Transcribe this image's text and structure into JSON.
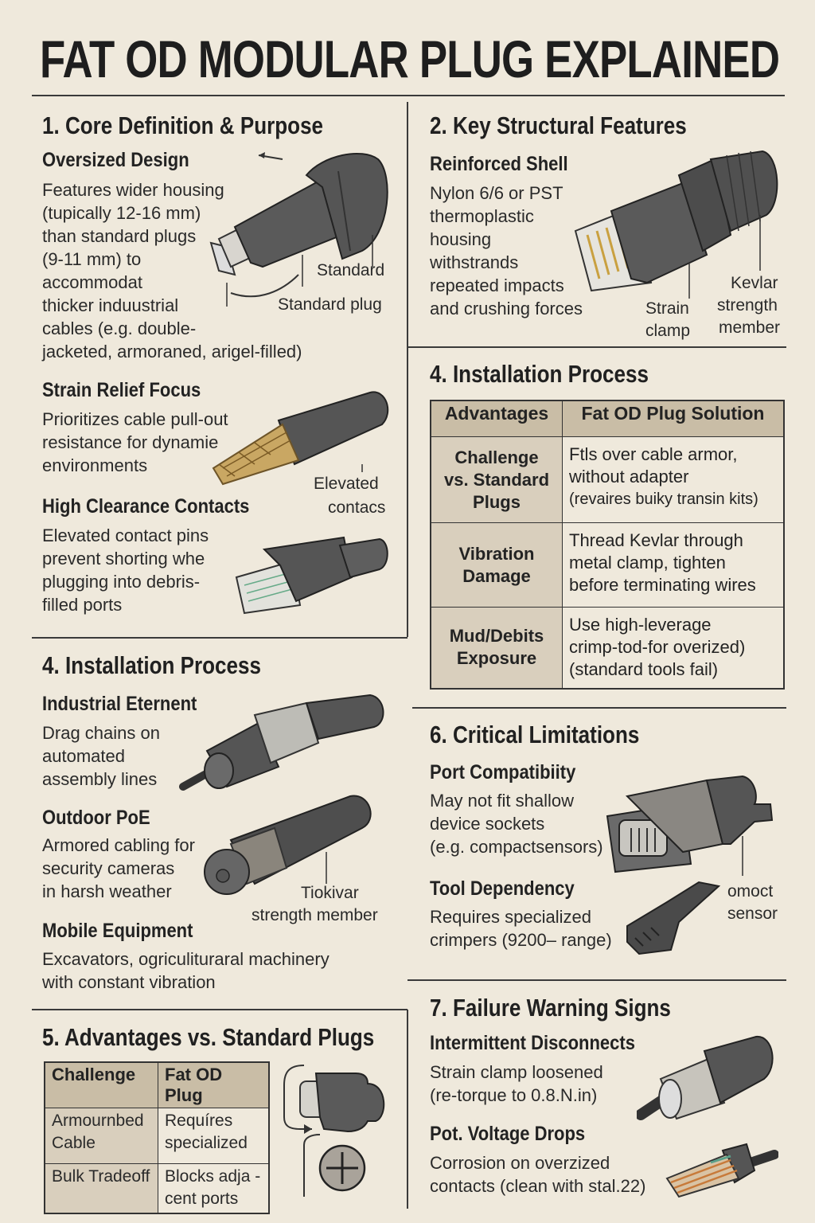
{
  "title": "FAT OD MODULAR PLUG EXPLAINED",
  "s1": {
    "heading": "1. Core Definition & Purpose",
    "items": [
      {
        "title": "Oversized Design",
        "lines": [
          "Features wider housing",
          "(tupically 12-16 mm)",
          "than standard plugs",
          "(9-11 mm) to",
          "accommodat",
          "thicker induustrial",
          "cables (e.g. double-",
          "jacketed, armoraned, arigel-filled)"
        ]
      },
      {
        "title": "Strain Relief Focus",
        "lines": [
          "Prioritizes cable pull-out",
          "resistance for dynamie",
          "environments"
        ]
      },
      {
        "title": "High  Clearance Contacts",
        "lines": [
          "Elevated contact pins",
          "prevent shorting whe",
          "plugging into debris-",
          "filled ports"
        ]
      }
    ],
    "labels": {
      "standard": "Standard",
      "standard_plug": "Standard plug",
      "elevated": "Elevated",
      "contacs": "contacs"
    }
  },
  "s2": {
    "heading": "2. Key Structural Features",
    "item": {
      "title": "Reinforced Shell",
      "lines": [
        "Nylon 6/6 or PST",
        "thermoplastic",
        "housing",
        "withstrands",
        "repeated impacts",
        "and crushing forces"
      ]
    },
    "labels": {
      "strain": "Strain",
      "clamp": "clamp",
      "kevlar": "Kevlar",
      "strength": "strength",
      "member": "member"
    }
  },
  "s4left": {
    "heading": "4. Installation Process",
    "items": [
      {
        "title": "Industrial Eternent",
        "lines": [
          "Drag chains on",
          "automated",
          "assembly lines"
        ]
      },
      {
        "title": "Outdoor PoE",
        "lines": [
          "Armored cabling for",
          "security cameras",
          "in harsh weather"
        ]
      },
      {
        "title": "Mobile Equipment",
        "lines": [
          "Excavators, ogriculituraral machinery",
          "with constant vibration"
        ]
      }
    ],
    "labels": {
      "tiokivar": "Tiokivar",
      "strength_member": "strength member"
    }
  },
  "s4right": {
    "heading": "4. Installation Process",
    "table": {
      "headers": [
        "Advantages",
        "Fat  OD Plug Solution"
      ],
      "rows": [
        {
          "label": [
            "Challenge",
            "vs. Standard",
            "Plugs"
          ],
          "text": [
            "Ftls over cable armor,",
            "without adapter",
            "(revaires buiky transin kits)"
          ]
        },
        {
          "label": [
            "Vibration",
            "Damage"
          ],
          "text": [
            "Thread Kevlar through",
            "metal clamp, tighten",
            "before terminating wires"
          ]
        },
        {
          "label": [
            "Mud/Debits",
            "Exposure"
          ],
          "text": [
            "Use high-leverage",
            "crimp-tod-for overized)",
            "(standard tools fail)"
          ]
        }
      ]
    }
  },
  "s5": {
    "heading": "5. Advantages vs. Standard Plugs",
    "table": {
      "headers": [
        "Challenge",
        "Fat  OD Plug"
      ],
      "rows": [
        {
          "c": [
            "Armournbed",
            "Cable"
          ],
          "s": [
            "Requíres",
            "specialized"
          ]
        },
        {
          "c": [
            "Bulk Tradeoff"
          ],
          "s": [
            "Blocks adja -",
            "cent ports"
          ]
        }
      ]
    }
  },
  "s6": {
    "heading": "6. Critical Limitations",
    "items": [
      {
        "title": "Port Compatibiity",
        "lines": [
          "May not fit shallow",
          "device sockets",
          "(e.g. compactsensors)"
        ]
      },
      {
        "title": "Tool Dependency",
        "lines": [
          "Requires specialized",
          "crimpers (9200– range)"
        ]
      }
    ],
    "labels": {
      "omoct": "omoct",
      "sensor": "sensor"
    }
  },
  "s7": {
    "heading": "7. Failure Warning Signs",
    "items": [
      {
        "title": "Intermittent Disconnects",
        "lines": [
          "Strain clamp loosened",
          "(re-torque to 0.8.N.in)"
        ]
      },
      {
        "title": "Pot. Voltage Drops",
        "lines": [
          "Corrosion on overzized",
          "contacts (clean with stal.22)"
        ]
      }
    ]
  },
  "colors": {
    "background": "#efe9dc",
    "plug_gray": "#5a5a5a",
    "table_header": "#c9bda6",
    "table_label": "#d9cfbd"
  }
}
